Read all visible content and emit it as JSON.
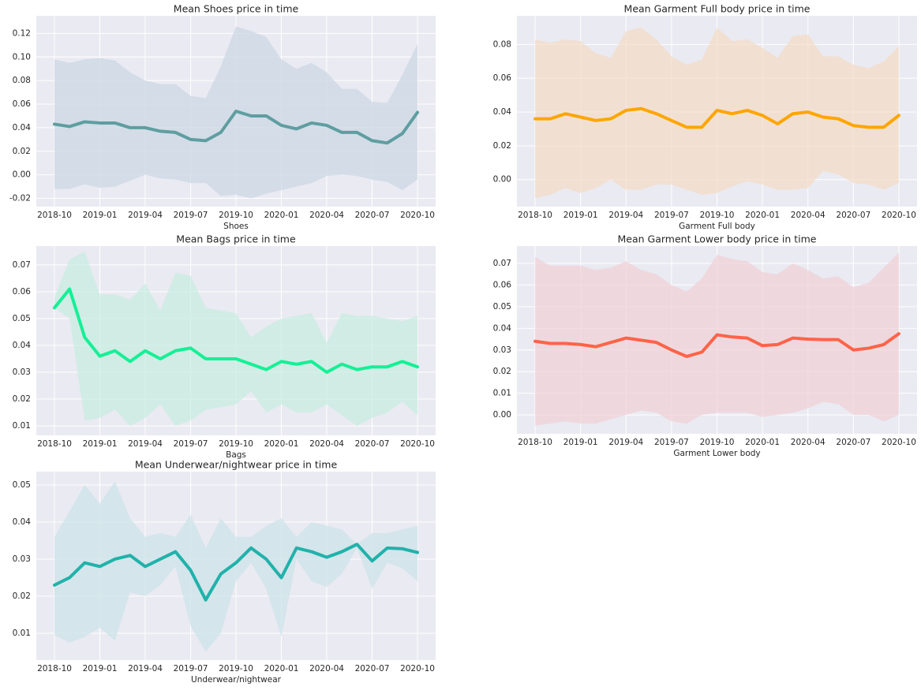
{
  "chart_data": [
    {
      "type": "line",
      "title": "Mean Shoes price in time",
      "xlabel": "Shoes",
      "color": "#5f9ea0",
      "band_color": "#c9d5e3",
      "x": [
        "2018-10",
        "2018-11",
        "2018-12",
        "2019-01",
        "2019-02",
        "2019-03",
        "2019-04",
        "2019-05",
        "2019-06",
        "2019-07",
        "2019-08",
        "2019-09",
        "2019-10",
        "2019-11",
        "2019-12",
        "2020-01",
        "2020-02",
        "2020-03",
        "2020-04",
        "2020-05",
        "2020-06",
        "2020-07",
        "2020-08",
        "2020-09",
        "2020-10"
      ],
      "values": [
        0.043,
        0.041,
        0.045,
        0.044,
        0.044,
        0.04,
        0.04,
        0.037,
        0.036,
        0.03,
        0.029,
        0.036,
        0.054,
        0.05,
        0.05,
        0.042,
        0.039,
        0.044,
        0.042,
        0.036,
        0.036,
        0.029,
        0.027,
        0.035,
        0.053
      ],
      "upper": [
        0.098,
        0.095,
        0.098,
        0.099,
        0.097,
        0.087,
        0.08,
        0.077,
        0.077,
        0.067,
        0.065,
        0.092,
        0.126,
        0.122,
        0.117,
        0.098,
        0.09,
        0.095,
        0.087,
        0.073,
        0.073,
        0.062,
        0.061,
        0.085,
        0.111
      ],
      "lower": [
        -0.012,
        -0.012,
        -0.008,
        -0.011,
        -0.01,
        -0.005,
        0.0,
        -0.003,
        -0.004,
        -0.007,
        -0.007,
        -0.018,
        -0.017,
        -0.02,
        -0.016,
        -0.013,
        -0.01,
        -0.007,
        -0.001,
        0.0,
        -0.001,
        -0.004,
        -0.006,
        -0.013,
        -0.004
      ],
      "ylim": [
        -0.027,
        0.135
      ],
      "yticks": [
        -0.02,
        {
          "value": 0,
          "label": "0.00"
        },
        0.02,
        0.04,
        0.06,
        0.08,
        {
          "value": 0.1,
          "label": "0.10"
        },
        0.12
      ],
      "xticks": [
        "2018-10",
        "2019-01",
        "2019-04",
        "2019-07",
        "2019-10",
        "2020-01",
        "2020-04",
        "2020-07",
        "2020-10"
      ],
      "grid": true
    },
    {
      "type": "line",
      "title": "Mean Garment Full body price in time",
      "xlabel": "Garment Full body",
      "color": "#ffa500",
      "band_color": "#f4dcc4",
      "x": [
        "2018-10",
        "2018-11",
        "2018-12",
        "2019-01",
        "2019-02",
        "2019-03",
        "2019-04",
        "2019-05",
        "2019-06",
        "2019-07",
        "2019-08",
        "2019-09",
        "2019-10",
        "2019-11",
        "2019-12",
        "2020-01",
        "2020-02",
        "2020-03",
        "2020-04",
        "2020-05",
        "2020-06",
        "2020-07",
        "2020-08",
        "2020-09",
        "2020-10"
      ],
      "values": [
        0.036,
        0.036,
        0.039,
        0.037,
        0.035,
        0.036,
        0.041,
        0.042,
        0.039,
        0.035,
        0.031,
        0.031,
        0.041,
        0.039,
        0.041,
        0.038,
        0.033,
        0.039,
        0.04,
        0.037,
        0.036,
        0.032,
        0.031,
        0.031,
        0.038
      ],
      "upper": [
        0.083,
        0.081,
        0.083,
        0.082,
        0.075,
        0.072,
        0.088,
        0.09,
        0.083,
        0.073,
        0.068,
        0.071,
        0.09,
        0.082,
        0.083,
        0.078,
        0.072,
        0.085,
        0.086,
        0.073,
        0.073,
        0.068,
        0.066,
        0.07,
        0.079
      ],
      "lower": [
        -0.011,
        -0.009,
        -0.005,
        -0.008,
        -0.005,
        0.0,
        -0.006,
        -0.006,
        -0.003,
        -0.003,
        -0.006,
        -0.009,
        -0.008,
        -0.004,
        -0.001,
        -0.003,
        -0.006,
        -0.006,
        -0.005,
        0.005,
        0.003,
        -0.002,
        -0.003,
        -0.006,
        -0.002
      ],
      "ylim": [
        -0.016,
        0.097
      ],
      "yticks": [
        {
          "value": 0,
          "label": "0.00"
        },
        0.02,
        0.04,
        0.06,
        0.08
      ],
      "xticks": [
        "2018-10",
        "2019-01",
        "2019-04",
        "2019-07",
        "2019-10",
        "2020-01",
        "2020-04",
        "2020-07",
        "2020-10"
      ],
      "grid": true
    },
    {
      "type": "line",
      "title": "Mean Bags price in time",
      "xlabel": "Bags",
      "color": "#14f096",
      "band_color": "#c6ecdf",
      "x": [
        "2018-10",
        "2018-11",
        "2018-12",
        "2019-01",
        "2019-02",
        "2019-03",
        "2019-04",
        "2019-05",
        "2019-06",
        "2019-07",
        "2019-08",
        "2019-09",
        "2019-10",
        "2019-11",
        "2019-12",
        "2020-01",
        "2020-02",
        "2020-03",
        "2020-04",
        "2020-05",
        "2020-06",
        "2020-07",
        "2020-08",
        "2020-09",
        "2020-10"
      ],
      "values": [
        0.054,
        0.061,
        0.043,
        0.036,
        0.038,
        0.034,
        0.038,
        0.035,
        0.038,
        0.039,
        0.035,
        0.035,
        0.035,
        0.033,
        0.031,
        0.034,
        0.033,
        0.034,
        0.03,
        0.033,
        0.031,
        0.032,
        0.032,
        0.034,
        0.032
      ],
      "upper": [
        0.058,
        0.072,
        0.075,
        0.059,
        0.059,
        0.057,
        0.063,
        0.053,
        0.067,
        0.066,
        0.054,
        0.053,
        0.052,
        0.043,
        0.047,
        0.05,
        0.051,
        0.052,
        0.041,
        0.052,
        0.051,
        0.051,
        0.05,
        0.049,
        0.051
      ],
      "lower": [
        0.054,
        0.05,
        0.012,
        0.013,
        0.016,
        0.01,
        0.013,
        0.018,
        0.01,
        0.012,
        0.016,
        0.017,
        0.018,
        0.023,
        0.015,
        0.018,
        0.015,
        0.015,
        0.018,
        0.014,
        0.01,
        0.013,
        0.015,
        0.019,
        0.014
      ],
      "ylim": [
        0.0065,
        0.077
      ],
      "yticks": [
        0.01,
        0.02,
        0.03,
        0.04,
        0.05,
        0.06,
        0.07
      ],
      "xticks": [
        "2018-10",
        "2019-01",
        "2019-04",
        "2019-07",
        "2019-10",
        "2020-01",
        "2020-04",
        "2020-07",
        "2020-10"
      ],
      "grid": true
    },
    {
      "type": "line",
      "title": "Mean Garment Lower body price in time",
      "xlabel": "Garment Lower body",
      "color": "#ff6347",
      "band_color": "#efd0d6",
      "x": [
        "2018-10",
        "2018-11",
        "2018-12",
        "2019-01",
        "2019-02",
        "2019-03",
        "2019-04",
        "2019-05",
        "2019-06",
        "2019-07",
        "2019-08",
        "2019-09",
        "2019-10",
        "2019-11",
        "2019-12",
        "2020-01",
        "2020-02",
        "2020-03",
        "2020-04",
        "2020-05",
        "2020-06",
        "2020-07",
        "2020-08",
        "2020-09",
        "2020-10"
      ],
      "values": [
        0.034,
        0.033,
        0.033,
        0.0325,
        0.0315,
        0.0335,
        0.0355,
        0.0345,
        0.0335,
        0.03,
        0.027,
        0.029,
        0.037,
        0.036,
        0.0355,
        0.032,
        0.0325,
        0.0355,
        0.035,
        0.0348,
        0.0348,
        0.03,
        0.0308,
        0.0325,
        0.0375
      ],
      "upper": [
        0.073,
        0.069,
        0.069,
        0.069,
        0.067,
        0.068,
        0.071,
        0.067,
        0.065,
        0.06,
        0.057,
        0.063,
        0.074,
        0.072,
        0.071,
        0.066,
        0.065,
        0.07,
        0.067,
        0.063,
        0.064,
        0.059,
        0.061,
        0.068,
        0.075
      ],
      "lower": [
        -0.005,
        -0.004,
        -0.003,
        -0.004,
        -0.004,
        -0.002,
        0.0,
        0.002,
        0.001,
        -0.003,
        -0.004,
        0.0,
        0.001,
        0.001,
        0.001,
        -0.001,
        0.0,
        0.001,
        0.003,
        0.006,
        0.005,
        0.0,
        0.0,
        -0.003,
        0.0
      ],
      "ylim": [
        -0.0087,
        0.078
      ],
      "yticks": [
        {
          "value": 0,
          "label": "0.00"
        },
        0.01,
        0.02,
        0.03,
        0.04,
        0.05,
        0.06,
        0.07
      ],
      "xticks": [
        "2018-10",
        "2019-01",
        "2019-04",
        "2019-07",
        "2019-10",
        "2020-01",
        "2020-04",
        "2020-07",
        "2020-10"
      ],
      "grid": true
    },
    {
      "type": "line",
      "title": "Mean Underwear/nightwear price in time",
      "xlabel": "Underwear/nightwear",
      "color": "#20b2aa",
      "band_color": "#cbe3e8",
      "x": [
        "2018-10",
        "2018-11",
        "2018-12",
        "2019-01",
        "2019-02",
        "2019-03",
        "2019-04",
        "2019-05",
        "2019-06",
        "2019-07",
        "2019-08",
        "2019-09",
        "2019-10",
        "2019-11",
        "2019-12",
        "2020-01",
        "2020-02",
        "2020-03",
        "2020-04",
        "2020-05",
        "2020-06",
        "2020-07",
        "2020-08",
        "2020-09",
        "2020-10"
      ],
      "values": [
        0.023,
        0.025,
        0.029,
        0.028,
        0.03,
        0.031,
        0.028,
        0.03,
        0.032,
        0.027,
        0.019,
        0.026,
        0.029,
        0.033,
        0.03,
        0.025,
        0.033,
        0.032,
        0.0305,
        0.032,
        0.034,
        0.0295,
        0.033,
        0.0328,
        0.0318
      ],
      "upper": [
        0.036,
        0.043,
        0.05,
        0.045,
        0.051,
        0.041,
        0.036,
        0.037,
        0.036,
        0.042,
        0.033,
        0.041,
        0.036,
        0.036,
        0.039,
        0.041,
        0.036,
        0.04,
        0.039,
        0.038,
        0.034,
        0.037,
        0.037,
        0.038,
        0.039
      ],
      "lower": [
        0.0095,
        0.0075,
        0.009,
        0.0115,
        0.008,
        0.021,
        0.02,
        0.023,
        0.028,
        0.012,
        0.005,
        0.01,
        0.024,
        0.029,
        0.022,
        0.009,
        0.03,
        0.024,
        0.0225,
        0.026,
        0.033,
        0.022,
        0.029,
        0.0275,
        0.024
      ],
      "ylim": [
        0.00277,
        0.0536
      ],
      "yticks": [
        0.01,
        0.02,
        0.03,
        0.04,
        0.05
      ],
      "xticks": [
        "2018-10",
        "2019-01",
        "2019-04",
        "2019-07",
        "2019-10",
        "2020-01",
        "2020-04",
        "2020-07",
        "2020-10"
      ],
      "grid": true
    }
  ]
}
